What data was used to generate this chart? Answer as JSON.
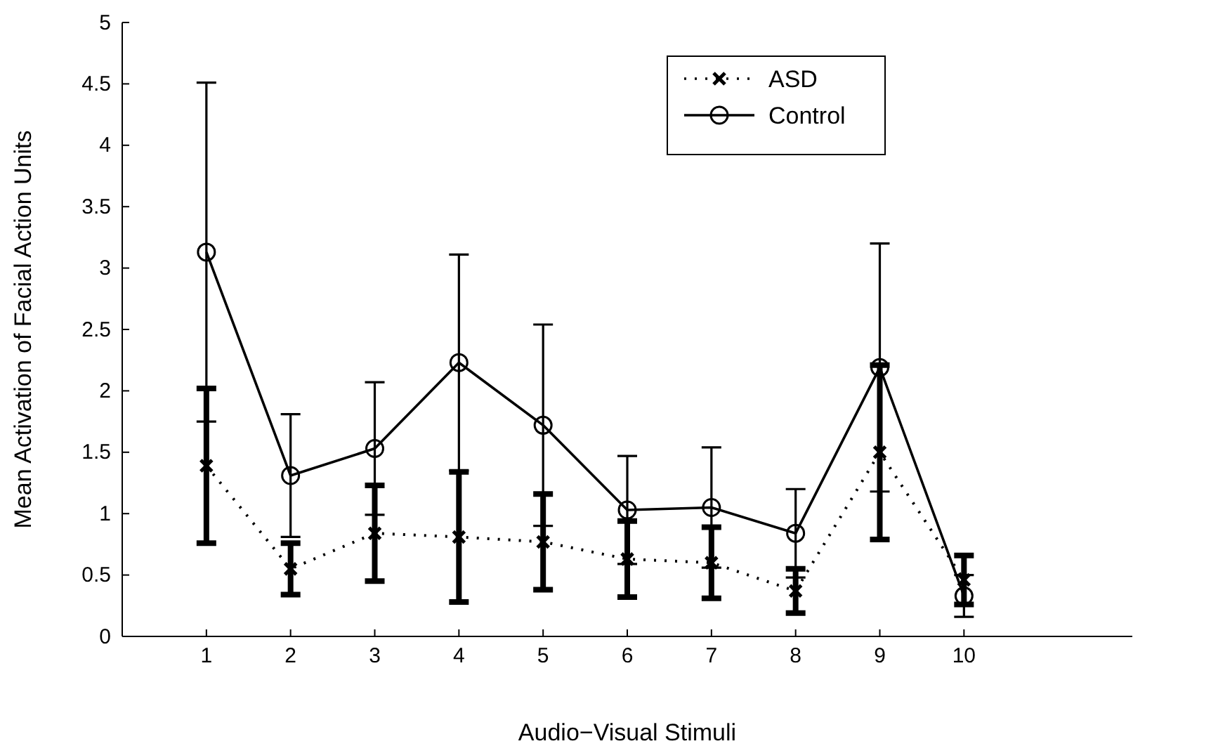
{
  "chart_data": {
    "type": "line",
    "xlabel": "Audio−Visual Stimuli",
    "ylabel": "Mean Activation of Facial Action Units",
    "x": [
      1,
      2,
      3,
      4,
      5,
      6,
      7,
      8,
      9,
      10
    ],
    "xlim": [
      0,
      12
    ],
    "xticks": [
      1,
      2,
      3,
      4,
      5,
      6,
      7,
      8,
      9,
      10
    ],
    "ylim": [
      0,
      5
    ],
    "yticks": [
      0,
      0.5,
      1,
      1.5,
      2,
      2.5,
      3,
      3.5,
      4,
      4.5,
      5
    ],
    "grid": false,
    "legend": "top right",
    "series": [
      {
        "name": "ASD",
        "color": "#000000",
        "marker": "cross",
        "line_style": "dotted",
        "values": [
          1.39,
          0.55,
          0.84,
          0.81,
          0.77,
          0.63,
          0.6,
          0.37,
          1.5,
          0.46
        ],
        "errors": [
          0.63,
          0.21,
          0.39,
          0.53,
          0.39,
          0.31,
          0.29,
          0.18,
          0.71,
          0.2
        ]
      },
      {
        "name": "Control",
        "color": "#000000",
        "marker": "circle",
        "line_style": "solid",
        "values": [
          3.13,
          1.31,
          1.53,
          2.23,
          1.72,
          1.03,
          1.05,
          0.84,
          2.19,
          0.33
        ],
        "errors": [
          1.38,
          0.5,
          0.54,
          0.88,
          0.82,
          0.44,
          0.49,
          0.36,
          1.01,
          0.17
        ]
      }
    ]
  }
}
